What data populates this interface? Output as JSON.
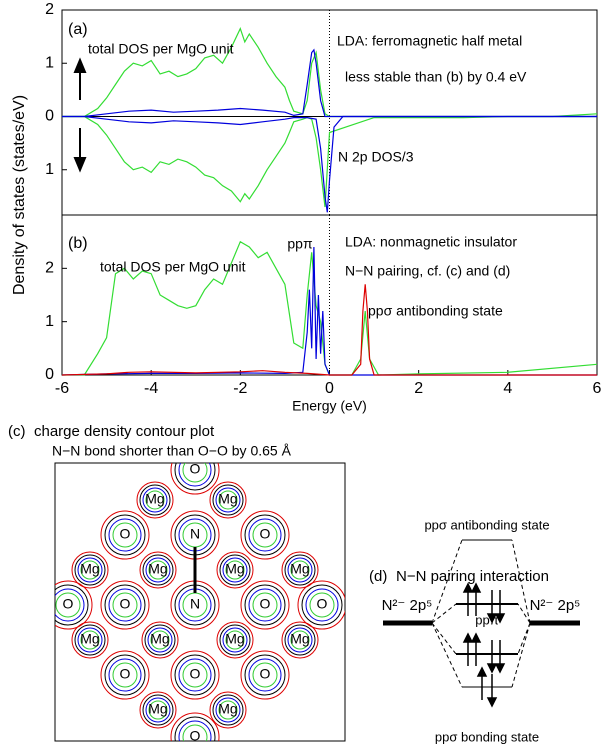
{
  "chart_data": [
    {
      "type": "line",
      "panel_label": "(a)",
      "ylabel": "Density of states (states/eV)",
      "xlim": [
        -6,
        6
      ],
      "ylim": [
        -1.85,
        2
      ],
      "yticks": [
        {
          "value": -1,
          "label": "1"
        },
        0,
        1,
        2
      ],
      "annotations": [
        "total DOS per MgO unit",
        "LDA: ferromagnetic half metal",
        "less stable than (b) by 0.4 eV",
        "N 2p DOS/3"
      ],
      "series": [
        {
          "color": "#33dd33",
          "x": [
            -6,
            -5.5,
            -5.2,
            -5,
            -4.8,
            -4.6,
            -4.4,
            -4.2,
            -4,
            -3.8,
            -3.6,
            -3.4,
            -3.2,
            -3,
            -2.8,
            -2.6,
            -2.4,
            -2.2,
            -2,
            -1.9,
            -1.8,
            -1.6,
            -1.4,
            -1.2,
            -1,
            -0.9,
            -0.8,
            -0.6,
            -0.5,
            -0.4,
            -0.3,
            -0.2,
            -0.1,
            0,
            1,
            2,
            3,
            4,
            5,
            6
          ],
          "values": [
            0,
            0,
            0.15,
            0.35,
            0.6,
            0.85,
            1.0,
            0.95,
            1.05,
            0.8,
            0.85,
            0.75,
            0.8,
            0.9,
            1.1,
            1.15,
            1.0,
            1.3,
            1.65,
            1.4,
            1.55,
            1.3,
            1.0,
            0.75,
            0.55,
            0.3,
            0.1,
            0.05,
            0.3,
            1.0,
            1.2,
            0.5,
            0.05,
            0,
            0,
            0,
            0,
            0,
            0,
            0.05
          ]
        },
        {
          "color": "#33dd33",
          "x": [
            -6,
            -5.5,
            -5.2,
            -5,
            -4.8,
            -4.6,
            -4.4,
            -4.2,
            -4,
            -3.8,
            -3.6,
            -3.4,
            -3.2,
            -3,
            -2.8,
            -2.6,
            -2.4,
            -2.2,
            -2,
            -1.9,
            -1.8,
            -1.6,
            -1.4,
            -1.2,
            -1,
            -0.9,
            -0.8,
            -0.6,
            -0.5,
            -0.4,
            -0.3,
            -0.2,
            -0.1,
            0,
            1,
            2,
            3,
            4,
            5,
            6
          ],
          "values": [
            0,
            0,
            -0.15,
            -0.35,
            -0.6,
            -0.85,
            -1.0,
            -0.95,
            -1.05,
            -0.85,
            -0.9,
            -0.8,
            -0.85,
            -0.95,
            -1.1,
            -1.15,
            -1.3,
            -1.4,
            -1.6,
            -1.45,
            -1.55,
            -1.3,
            -1.0,
            -0.75,
            -0.5,
            -0.3,
            -0.1,
            -0.05,
            -0.02,
            -0.05,
            -0.4,
            -1.0,
            -1.7,
            -0.3,
            -0.02,
            -0.02,
            -0.02,
            0,
            0,
            0
          ]
        },
        {
          "color": "#0000dd",
          "x": [
            -6,
            -5.5,
            -5,
            -4.5,
            -4,
            -3.5,
            -3,
            -2.5,
            -2,
            -1.5,
            -1,
            -0.8,
            -0.6,
            -0.5,
            -0.4,
            -0.35,
            -0.3,
            -0.2,
            -0.1,
            0,
            6
          ],
          "values": [
            0,
            0,
            0.05,
            0.1,
            0.12,
            0.08,
            0.1,
            0.12,
            0.15,
            0.12,
            0.08,
            0.02,
            0.05,
            0.6,
            1.2,
            1.25,
            1.0,
            0.3,
            0,
            0,
            0
          ]
        },
        {
          "color": "#0000dd",
          "x": [
            -6,
            -5.5,
            -5,
            -4.5,
            -4,
            -3.5,
            -3,
            -2.5,
            -2,
            -1.5,
            -1,
            -0.8,
            -0.5,
            -0.3,
            -0.2,
            -0.1,
            -0.05,
            0,
            0.1,
            0.3,
            6
          ],
          "values": [
            0,
            0,
            -0.05,
            -0.1,
            -0.12,
            -0.08,
            -0.1,
            -0.12,
            -0.15,
            -0.1,
            -0.05,
            -0.02,
            -0.02,
            -0.05,
            -0.6,
            -1.5,
            -1.8,
            -1.2,
            -0.2,
            0,
            0
          ]
        }
      ]
    },
    {
      "type": "line",
      "panel_label": "(b)",
      "xlabel": "Energy (eV)",
      "xlim": [
        -6,
        6
      ],
      "xticks": [
        -6,
        -4,
        -2,
        0,
        2,
        4,
        6
      ],
      "ylim": [
        0,
        3
      ],
      "yticks": [
        0,
        1,
        2
      ],
      "annotations": [
        "total DOS per MgO unit",
        "ppπ",
        "LDA: nonmagnetic insulator",
        "N−N pairing, cf. (c) and (d)",
        "ppσ  antibonding state"
      ],
      "series": [
        {
          "color": "#33dd33",
          "x": [
            -6,
            -5.5,
            -5.2,
            -5,
            -4.8,
            -4.6,
            -4.4,
            -4.2,
            -4,
            -3.8,
            -3.6,
            -3.4,
            -3.2,
            -3,
            -2.8,
            -2.6,
            -2.4,
            -2.2,
            -2,
            -1.8,
            -1.6,
            -1.4,
            -1.2,
            -1,
            -0.8,
            -0.6,
            -0.5,
            -0.4,
            -0.3,
            -0.2,
            -0.1,
            0,
            0.5,
            0.7,
            0.8,
            0.9,
            1.1,
            2,
            4,
            6
          ],
          "values": [
            0,
            0,
            0.4,
            0.7,
            1.9,
            2.0,
            1.8,
            1.95,
            1.9,
            1.5,
            1.4,
            1.3,
            1.25,
            1.3,
            1.6,
            1.8,
            1.7,
            2.1,
            2.5,
            2.4,
            2.2,
            2.3,
            2.0,
            1.7,
            0.6,
            0.5,
            1.5,
            2.3,
            1.3,
            1.0,
            0.2,
            0,
            0,
            0.3,
            1.2,
            0.3,
            0,
            0.02,
            0.05,
            0.2
          ]
        },
        {
          "color": "#0000dd",
          "x": [
            -6,
            -5,
            -4,
            -3,
            -2,
            -1,
            -0.6,
            -0.5,
            -0.45,
            -0.4,
            -0.35,
            -0.3,
            -0.25,
            -0.2,
            -0.15,
            -0.1,
            0,
            6
          ],
          "values": [
            0,
            0.02,
            0.03,
            0.03,
            0.04,
            0.03,
            0.05,
            0.8,
            1.6,
            0.5,
            2.4,
            0.3,
            1.5,
            0.4,
            1.2,
            0.2,
            0,
            0
          ]
        },
        {
          "color": "#dd0000",
          "x": [
            -6,
            -5,
            -4.5,
            -4,
            -3,
            -2,
            -1.5,
            -1,
            -0.5,
            0,
            0.5,
            0.7,
            0.75,
            0.8,
            0.85,
            0.9,
            1,
            1.5,
            6
          ],
          "values": [
            0,
            0.02,
            0.05,
            0.06,
            0.04,
            0.06,
            0.08,
            0.05,
            0.03,
            0,
            0,
            0.2,
            1.2,
            1.7,
            1.2,
            0.3,
            0,
            0,
            0
          ]
        }
      ]
    }
  ],
  "panel_c": {
    "label": "(c)",
    "title": "charge density contour plot",
    "subtitle": "N−N bond shorter than O−O by 0.65 Å",
    "atoms": [
      "O",
      "Mg",
      "Mg",
      "O",
      "N",
      "O",
      "Mg",
      "Mg",
      "Mg",
      "Mg",
      "O",
      "O",
      "N",
      "O",
      "O",
      "Mg",
      "Mg",
      "Mg",
      "Mg",
      "O",
      "O",
      "O",
      "Mg",
      "Mg",
      "O"
    ]
  },
  "panel_d": {
    "label": "(d)",
    "title": "N−N pairing interaction",
    "antibonding": "ppσ  antibonding state",
    "left_level": "N²⁻ 2p⁵",
    "right_level": "N²⁻ 2p⁵",
    "pi_label": "ppπ",
    "bonding": "ppσ  bonding state"
  }
}
